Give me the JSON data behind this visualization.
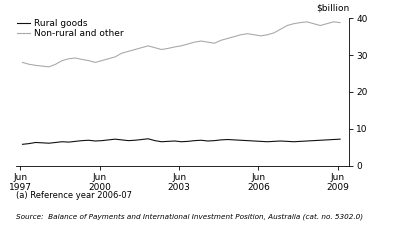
{
  "ylabel": "$billion",
  "ylim": [
    0,
    40
  ],
  "yticks": [
    0,
    10,
    20,
    30,
    40
  ],
  "xlim_start": 1997.25,
  "xlim_end": 2009.85,
  "xtick_positions": [
    1997.417,
    2000.417,
    2003.417,
    2006.417,
    2009.417
  ],
  "xtick_labels": [
    "Jun\n1997",
    "Jun\n2000",
    "Jun\n2003",
    "Jun\n2006",
    "Jun\n2009"
  ],
  "legend_entries": [
    "Rural goods",
    "Non-rural and other"
  ],
  "line_colors": [
    "#111111",
    "#aaaaaa"
  ],
  "footnote": "(a) Reference year 2006-07",
  "source": "Source:  Balance of Payments and International Investment Position, Australia (cat. no. 5302.0)",
  "rural_goods": [
    5.8,
    6.0,
    6.3,
    6.2,
    6.1,
    6.3,
    6.5,
    6.4,
    6.6,
    6.8,
    6.9,
    6.7,
    6.8,
    7.0,
    7.2,
    7.0,
    6.8,
    6.9,
    7.1,
    7.3,
    6.8,
    6.5,
    6.6,
    6.7,
    6.5,
    6.6,
    6.8,
    6.9,
    6.7,
    6.8,
    7.0,
    7.1,
    7.0,
    6.9,
    6.8,
    6.7,
    6.6,
    6.5,
    6.6,
    6.7,
    6.6,
    6.5,
    6.6,
    6.7,
    6.8,
    6.9,
    7.0,
    7.1,
    7.2
  ],
  "non_rural": [
    28.0,
    27.5,
    27.2,
    27.0,
    26.8,
    27.5,
    28.5,
    29.0,
    29.2,
    28.8,
    28.5,
    28.0,
    28.5,
    29.0,
    29.5,
    30.5,
    31.0,
    31.5,
    32.0,
    32.5,
    32.0,
    31.5,
    31.8,
    32.2,
    32.5,
    33.0,
    33.5,
    33.8,
    33.5,
    33.2,
    34.0,
    34.5,
    35.0,
    35.5,
    35.8,
    35.5,
    35.2,
    35.5,
    36.0,
    37.0,
    38.0,
    38.5,
    38.8,
    39.0,
    38.5,
    38.0,
    38.5,
    39.0,
    38.8
  ]
}
